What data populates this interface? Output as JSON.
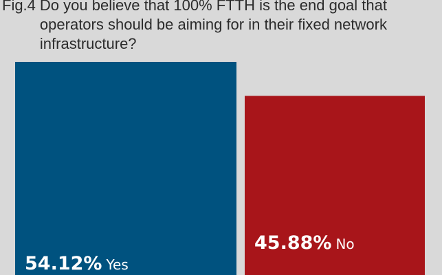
{
  "figure_label": "Fig.4",
  "title": "Do you believe that 100% FTTH is the end goal that operators should be aiming for in their fixed network infrastructure?",
  "colors": {
    "background": "#d9d9d9",
    "yes": "#00527f",
    "no": "#a8151a",
    "text_on_bar": "#ffffff"
  },
  "chart_data": {
    "type": "bar",
    "title": "Do you believe that 100% FTTH is the end goal that operators should be aiming for in their fixed network infrastructure?",
    "categories": [
      "Yes",
      "No"
    ],
    "values": [
      54.12,
      45.88
    ],
    "value_labels": [
      "54.12%",
      "45.88%"
    ],
    "unit": "%",
    "ylim": [
      0,
      54.12
    ],
    "grid": false,
    "legend": "none"
  }
}
